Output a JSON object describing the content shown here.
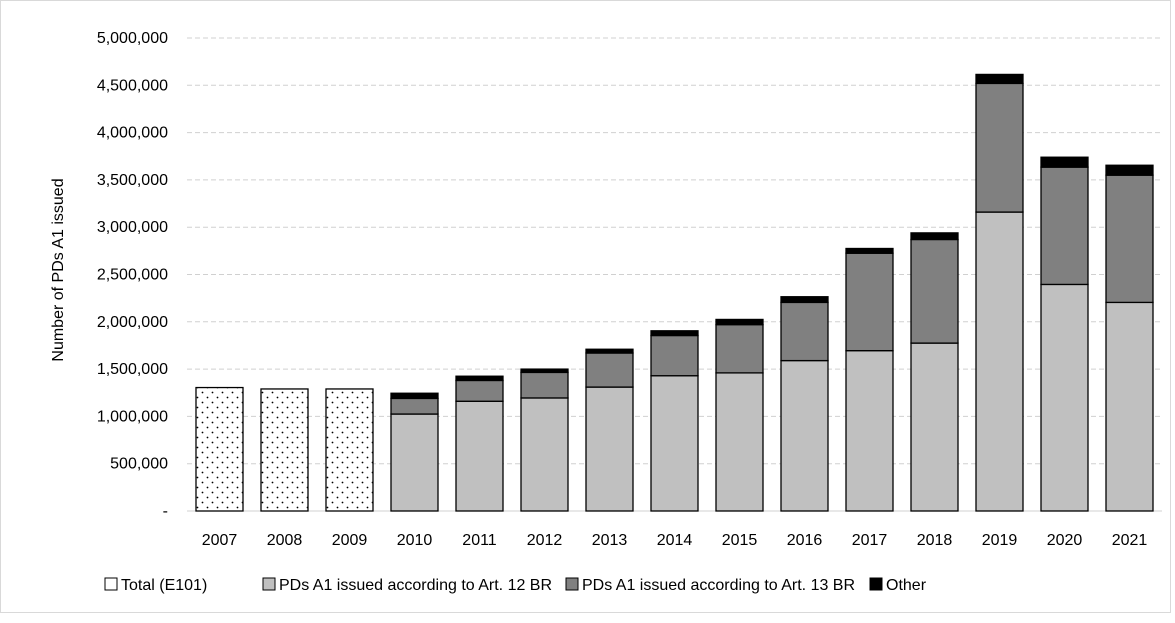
{
  "chart_data": {
    "type": "bar",
    "stacked": true,
    "title": "",
    "xlabel": "",
    "ylabel": "Number of PDs A1 issued",
    "ylim": [
      0,
      5000000
    ],
    "yticks": [
      0,
      500000,
      1000000,
      1500000,
      2000000,
      2500000,
      3000000,
      3500000,
      4000000,
      4500000,
      5000000
    ],
    "ytick_labels": [
      "-",
      "500,000",
      "1,000,000",
      "1,500,000",
      "2,000,000",
      "2,500,000",
      "3,000,000",
      "3,500,000",
      "4,000,000",
      "4,500,000",
      "5,000,000"
    ],
    "grid": true,
    "legend_position": "bottom",
    "categories": [
      "2007",
      "2008",
      "2009",
      "2010",
      "2011",
      "2012",
      "2013",
      "2014",
      "2015",
      "2016",
      "2017",
      "2018",
      "2019",
      "2020",
      "2021"
    ],
    "series": [
      {
        "name": "Total (E101)",
        "color": "#ffffff",
        "pattern": "dots",
        "values": [
          1305000,
          1290000,
          1290000,
          0,
          0,
          0,
          0,
          0,
          0,
          0,
          0,
          0,
          0,
          0,
          0
        ]
      },
      {
        "name": "PDs A1 issued according to Art. 12 BR",
        "color": "#c0c0c0",
        "values": [
          0,
          0,
          0,
          1025000,
          1160000,
          1195000,
          1310000,
          1430000,
          1460000,
          1590000,
          1695000,
          1775000,
          3160000,
          2395000,
          2205000
        ]
      },
      {
        "name": "PDs A1 issued according to Art. 13 BR",
        "color": "#808080",
        "values": [
          0,
          0,
          0,
          165000,
          220000,
          270000,
          360000,
          425000,
          510000,
          615000,
          1030000,
          1095000,
          1360000,
          1240000,
          1345000
        ]
      },
      {
        "name": "Other",
        "color": "#000000",
        "values": [
          0,
          0,
          0,
          55000,
          45000,
          35000,
          40000,
          50000,
          55000,
          60000,
          50000,
          70000,
          95000,
          105000,
          105000
        ]
      }
    ]
  }
}
